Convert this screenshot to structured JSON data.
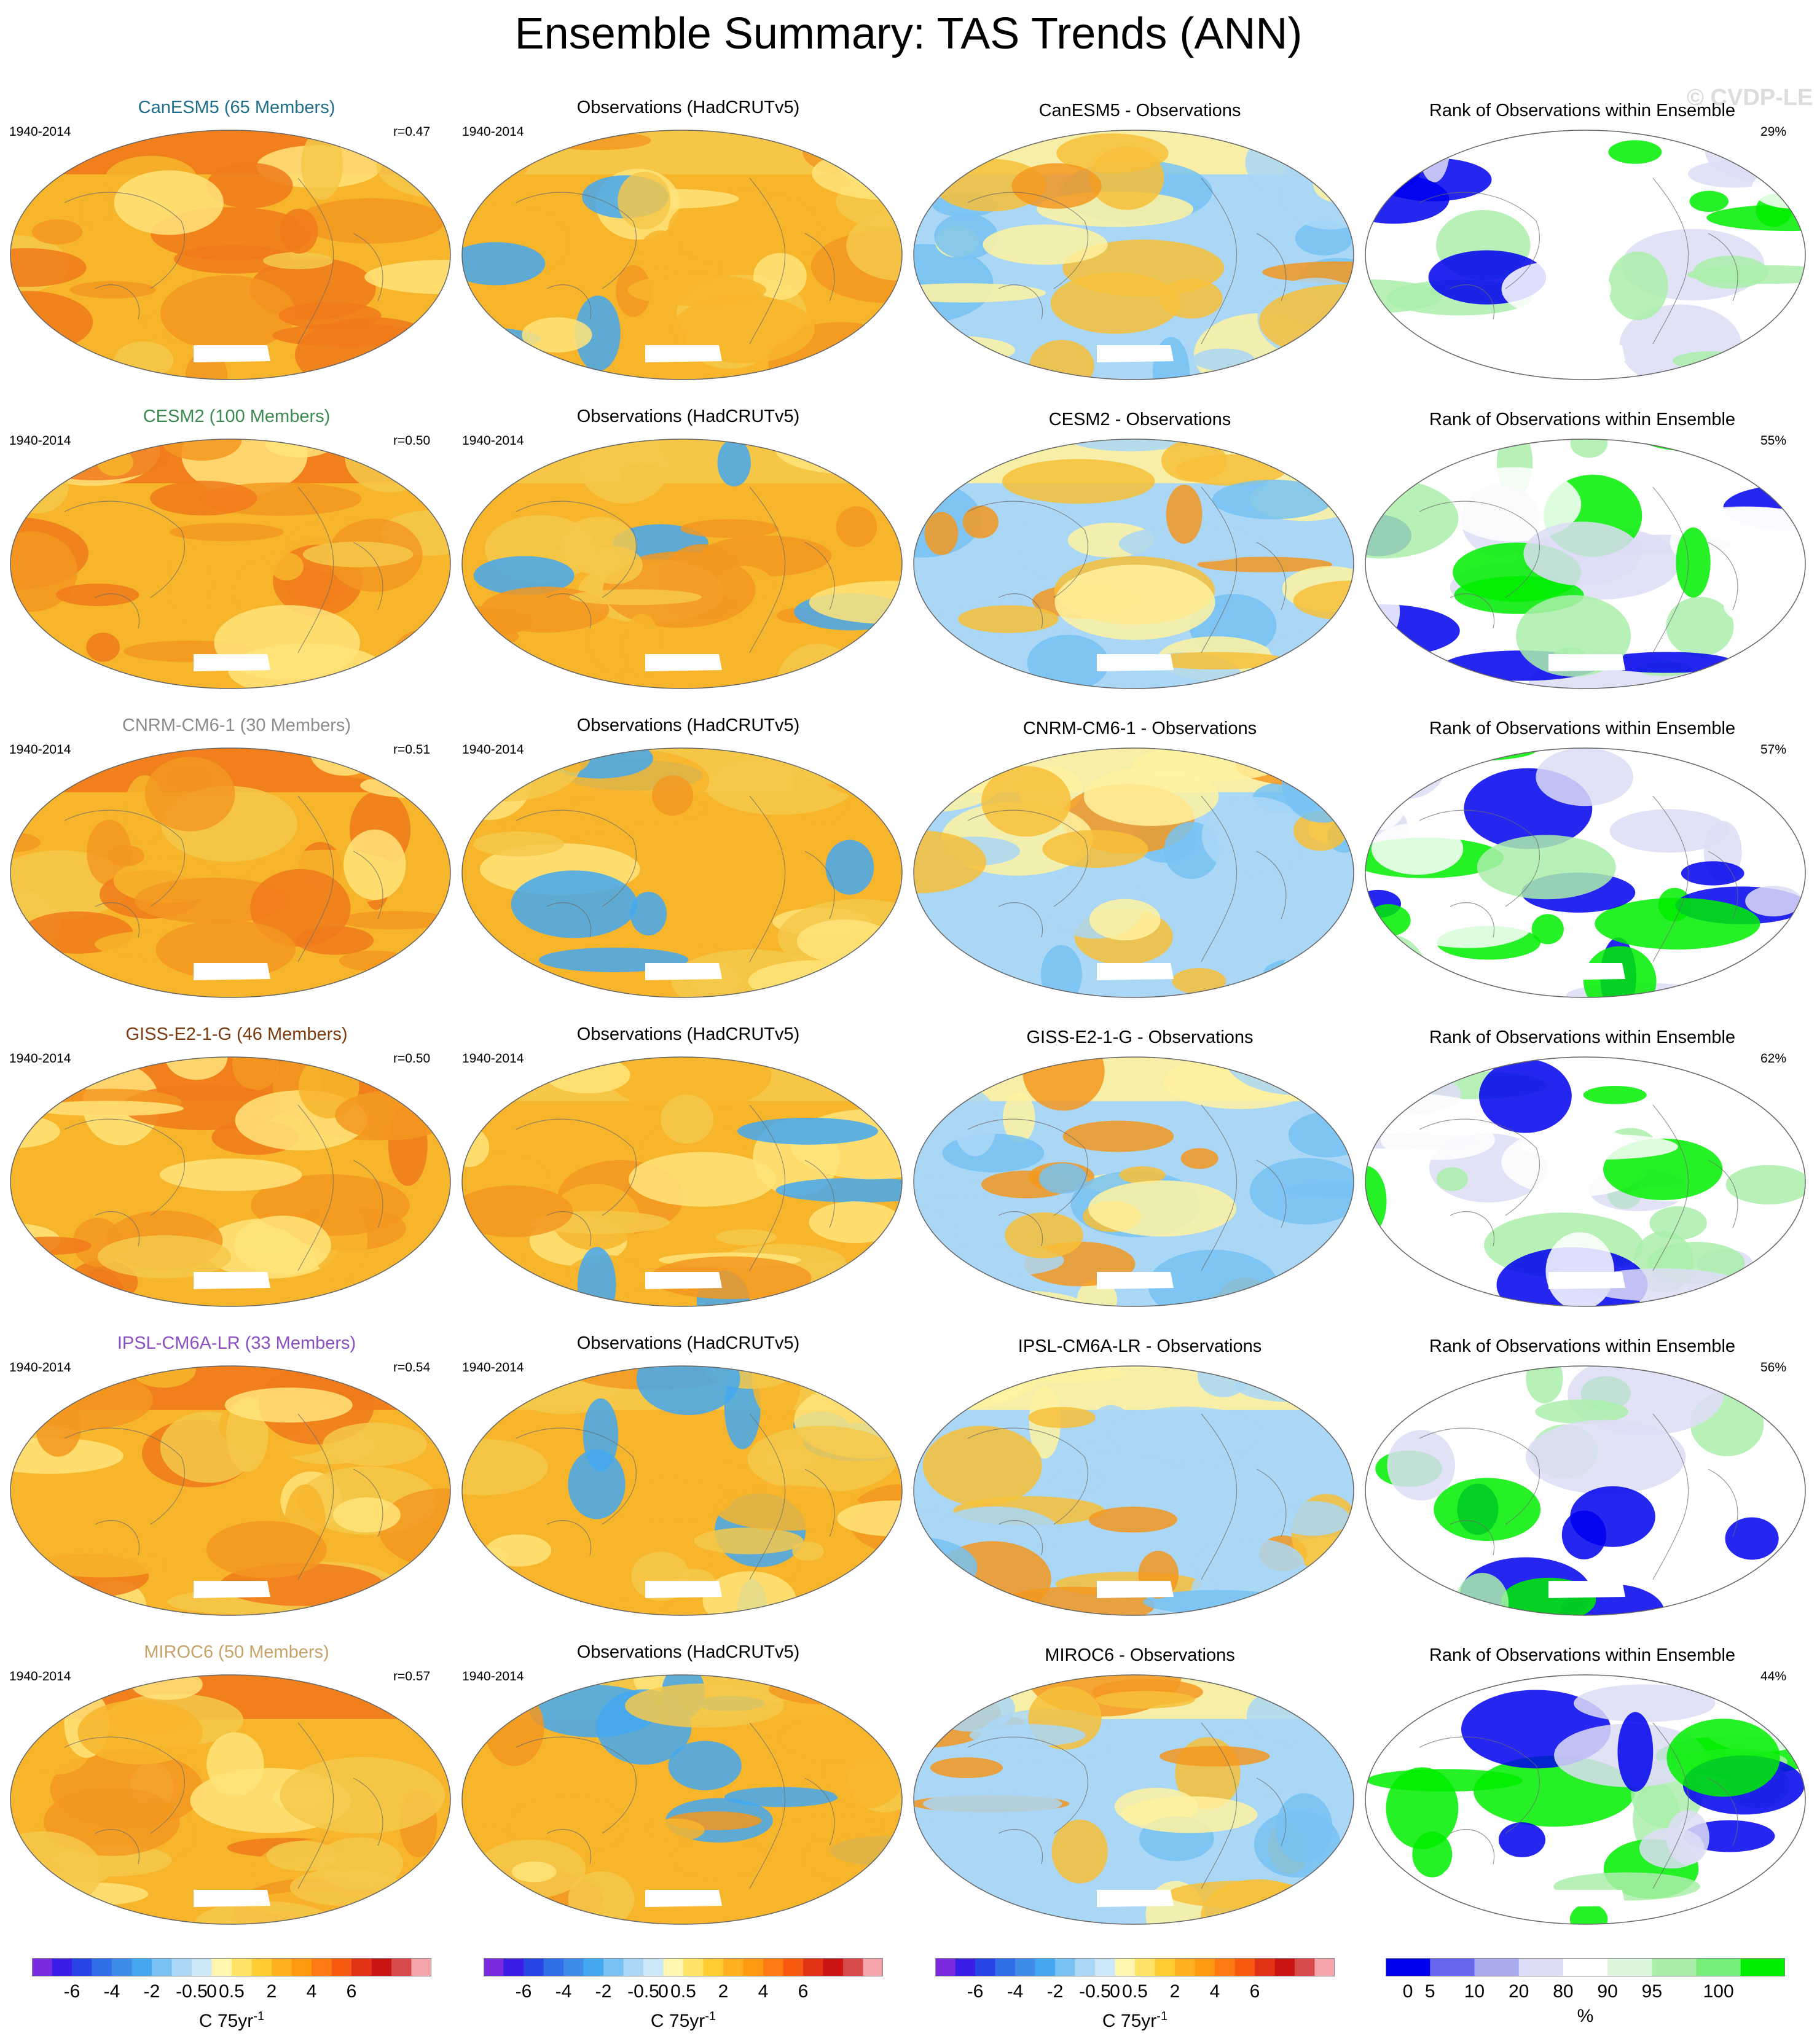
{
  "title": "Ensemble Summary: TAS Trends (ANN)",
  "watermark": "© CVDP-LE",
  "period": "1940-2014",
  "obs_title": "Observations (HadCRUTv5)",
  "rank_title": "Rank of Observations within Ensemble",
  "rows": [
    {
      "model_title": "CanESM5 (65 Members)",
      "model_color": "#1f6f8b",
      "r": "r=0.47",
      "diff_title": "CanESM5 - Observations",
      "rank_pct": "29%"
    },
    {
      "model_title": "CESM2 (100 Members)",
      "model_color": "#3c8a4f",
      "r": "r=0.50",
      "diff_title": "CESM2 - Observations",
      "rank_pct": "55%"
    },
    {
      "model_title": "CNRM-CM6-1 (30 Members)",
      "model_color": "#8c8c8c",
      "r": "r=0.51",
      "diff_title": "CNRM-CM6-1 - Observations",
      "rank_pct": "57%"
    },
    {
      "model_title": "GISS-E2-1-G (46 Members)",
      "model_color": "#7a3b10",
      "r": "r=0.50",
      "diff_title": "GISS-E2-1-G - Observations",
      "rank_pct": "62%"
    },
    {
      "model_title": "IPSL-CM6A-LR (33 Members)",
      "model_color": "#8a4fc2",
      "r": "r=0.54",
      "diff_title": "IPSL-CM6A-LR - Observations",
      "rank_pct": "56%"
    },
    {
      "model_title": "MIROC6 (50 Members)",
      "model_color": "#c9a26a",
      "r": "r=0.57",
      "diff_title": "MIROC6 - Observations",
      "rank_pct": "44%"
    }
  ],
  "trend_colorbar": {
    "colors": [
      "#7a2be0",
      "#3a1ee8",
      "#2846e6",
      "#2f6fe8",
      "#3f8ce8",
      "#43a8f0",
      "#77c2f2",
      "#aad7f6",
      "#cde6f8",
      "#fff7b0",
      "#ffe266",
      "#ffcc33",
      "#ffb020",
      "#ff9a10",
      "#ff7a12",
      "#f55a10",
      "#e23316",
      "#cc1414",
      "#d64a4a",
      "#f4a4aa"
    ],
    "labels": [
      "-6",
      "-4",
      "-2",
      "-0.5",
      "0",
      "0.5",
      "2",
      "4",
      "6"
    ],
    "label_boundaries": [
      2,
      4,
      6,
      8,
      9,
      10,
      12,
      14,
      16
    ],
    "unit": "C 75yr",
    "unit_sup": "-1"
  },
  "rank_colorbar": {
    "colors": [
      "#0000ee",
      "#6666ee",
      "#aaaaee",
      "#ddddf6",
      "#ffffff",
      "#ddf6dd",
      "#aaeeaa",
      "#77ee77",
      "#00ee00"
    ],
    "labels": [
      "0",
      "5",
      "10",
      "20",
      "80",
      "90",
      "95",
      "100"
    ],
    "label_boundaries": [
      0.5,
      1,
      2,
      3,
      4,
      5,
      6,
      7.5
    ],
    "unit": "%"
  },
  "legend_colors": {
    "trend_model": [
      "#f7b52c",
      "#f39820",
      "#f07a1b",
      "#f5c84a",
      "#ffe47a"
    ],
    "trend_obs": [
      "#f7b52c",
      "#f39820",
      "#f5c84a",
      "#ffe47a",
      "#43a8f0"
    ],
    "diff": [
      "#aad7f6",
      "#77c2f2",
      "#fff2a0",
      "#f7c038",
      "#f39820"
    ],
    "rank": [
      "#0000ee",
      "#ffffff",
      "#00ee00",
      "#ddddf6",
      "#aaeeaa"
    ]
  }
}
